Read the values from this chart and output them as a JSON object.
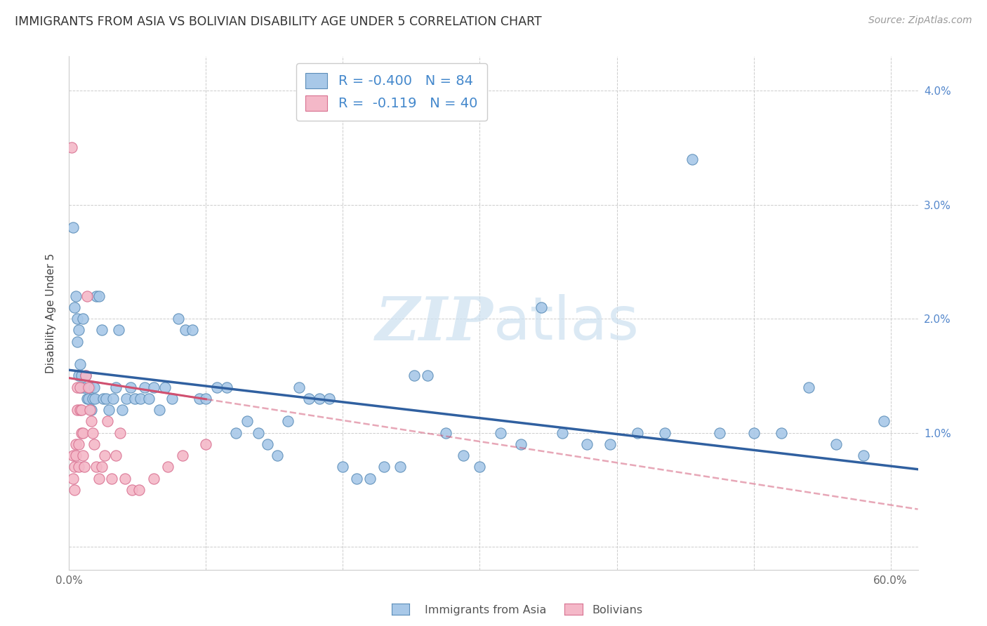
{
  "title": "IMMIGRANTS FROM ASIA VS BOLIVIAN DISABILITY AGE UNDER 5 CORRELATION CHART",
  "source": "Source: ZipAtlas.com",
  "ylabel": "Disability Age Under 5",
  "xlim": [
    0.0,
    0.62
  ],
  "ylim": [
    -0.002,
    0.043
  ],
  "r_blue": -0.4,
  "n_blue": 84,
  "r_pink": -0.119,
  "n_pink": 40,
  "color_blue_fill": "#a8c8e8",
  "color_blue_edge": "#5b8db8",
  "color_pink_fill": "#f4b8c8",
  "color_pink_edge": "#d87090",
  "color_line_blue": "#3060a0",
  "color_line_pink": "#d05070",
  "watermark_color": "#cce0f0",
  "background_color": "#ffffff",
  "grid_color": "#cccccc",
  "blue_scatter_x": [
    0.003,
    0.004,
    0.005,
    0.006,
    0.006,
    0.007,
    0.007,
    0.008,
    0.008,
    0.009,
    0.01,
    0.01,
    0.011,
    0.012,
    0.013,
    0.014,
    0.015,
    0.016,
    0.017,
    0.018,
    0.019,
    0.02,
    0.022,
    0.024,
    0.025,
    0.027,
    0.029,
    0.032,
    0.034,
    0.036,
    0.039,
    0.042,
    0.045,
    0.048,
    0.052,
    0.055,
    0.058,
    0.062,
    0.066,
    0.07,
    0.075,
    0.08,
    0.085,
    0.09,
    0.095,
    0.1,
    0.108,
    0.115,
    0.122,
    0.13,
    0.138,
    0.145,
    0.152,
    0.16,
    0.168,
    0.175,
    0.183,
    0.19,
    0.2,
    0.21,
    0.22,
    0.23,
    0.242,
    0.252,
    0.262,
    0.275,
    0.288,
    0.3,
    0.315,
    0.33,
    0.345,
    0.36,
    0.378,
    0.395,
    0.415,
    0.435,
    0.455,
    0.475,
    0.5,
    0.52,
    0.54,
    0.56,
    0.58,
    0.595
  ],
  "blue_scatter_y": [
    0.028,
    0.021,
    0.022,
    0.02,
    0.018,
    0.019,
    0.015,
    0.016,
    0.014,
    0.015,
    0.02,
    0.014,
    0.014,
    0.015,
    0.013,
    0.013,
    0.014,
    0.012,
    0.013,
    0.014,
    0.013,
    0.022,
    0.022,
    0.019,
    0.013,
    0.013,
    0.012,
    0.013,
    0.014,
    0.019,
    0.012,
    0.013,
    0.014,
    0.013,
    0.013,
    0.014,
    0.013,
    0.014,
    0.012,
    0.014,
    0.013,
    0.02,
    0.019,
    0.019,
    0.013,
    0.013,
    0.014,
    0.014,
    0.01,
    0.011,
    0.01,
    0.009,
    0.008,
    0.011,
    0.014,
    0.013,
    0.013,
    0.013,
    0.007,
    0.006,
    0.006,
    0.007,
    0.007,
    0.015,
    0.015,
    0.01,
    0.008,
    0.007,
    0.01,
    0.009,
    0.021,
    0.01,
    0.009,
    0.009,
    0.01,
    0.01,
    0.034,
    0.01,
    0.01,
    0.01,
    0.014,
    0.009,
    0.008,
    0.011
  ],
  "pink_scatter_x": [
    0.002,
    0.003,
    0.003,
    0.004,
    0.004,
    0.005,
    0.005,
    0.006,
    0.006,
    0.007,
    0.007,
    0.008,
    0.008,
    0.009,
    0.009,
    0.01,
    0.01,
    0.011,
    0.012,
    0.013,
    0.014,
    0.015,
    0.016,
    0.017,
    0.018,
    0.02,
    0.022,
    0.024,
    0.026,
    0.028,
    0.031,
    0.034,
    0.037,
    0.041,
    0.046,
    0.051,
    0.062,
    0.072,
    0.083,
    0.1
  ],
  "pink_scatter_y": [
    0.035,
    0.008,
    0.006,
    0.007,
    0.005,
    0.009,
    0.008,
    0.014,
    0.012,
    0.009,
    0.007,
    0.014,
    0.012,
    0.012,
    0.01,
    0.01,
    0.008,
    0.007,
    0.015,
    0.022,
    0.014,
    0.012,
    0.011,
    0.01,
    0.009,
    0.007,
    0.006,
    0.007,
    0.008,
    0.011,
    0.006,
    0.008,
    0.01,
    0.006,
    0.005,
    0.005,
    0.006,
    0.007,
    0.008,
    0.009
  ],
  "blue_line_x0": 0.0,
  "blue_line_x1": 0.62,
  "blue_line_y0": 0.0155,
  "blue_line_y1": 0.0068,
  "pink_line_x0": 0.0,
  "pink_line_x1": 0.62,
  "pink_line_y0": 0.0148,
  "pink_line_y1": 0.0033
}
